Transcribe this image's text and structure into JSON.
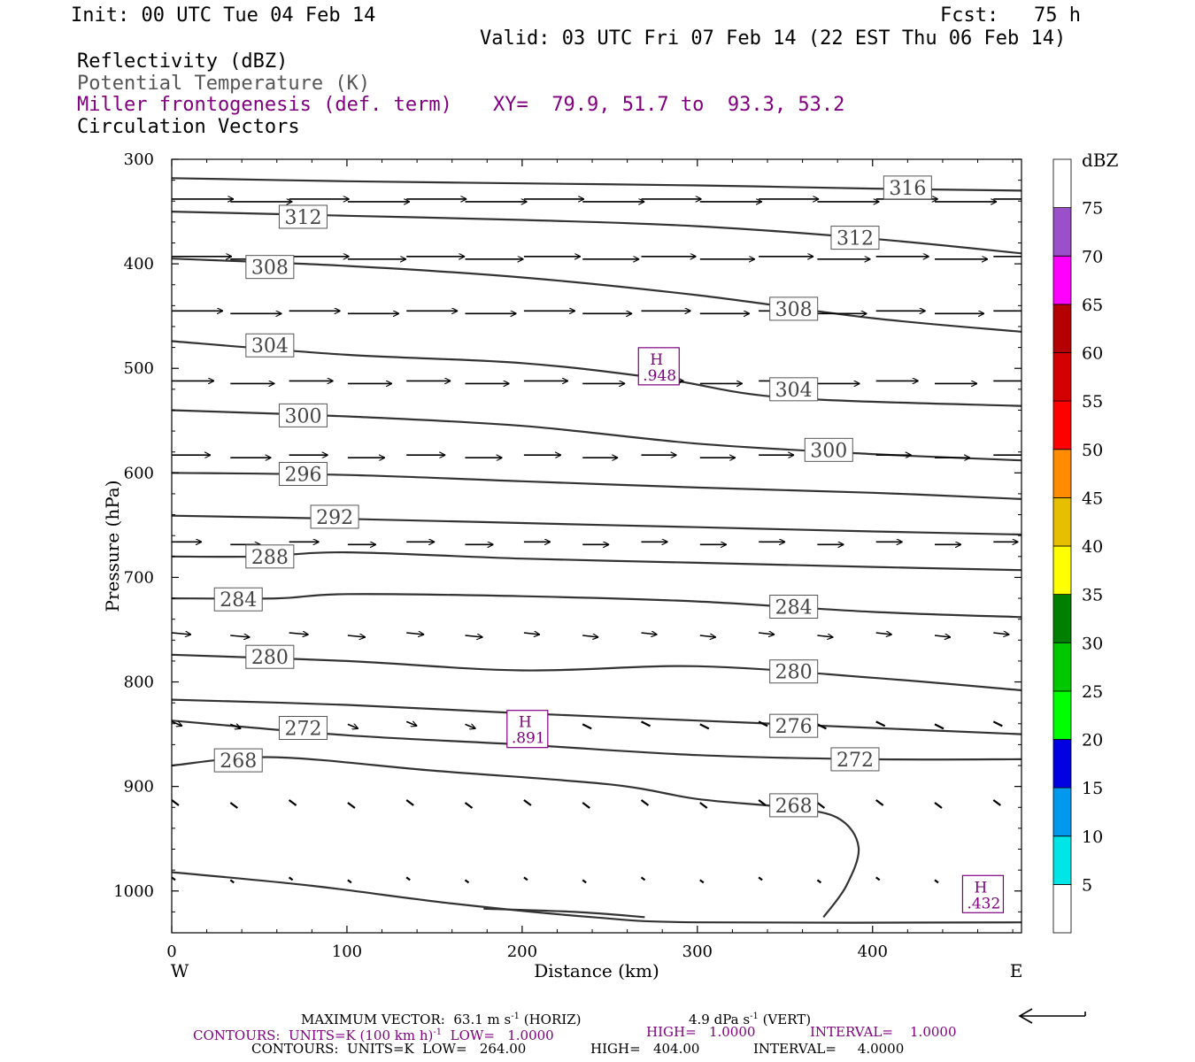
{
  "header": {
    "init": "Init: 00 UTC Tue 04 Feb 14",
    "fcst": "Fcst:   75 h",
    "valid": "Valid: 03 UTC Fri 07 Feb 14 (22 EST Thu 06 Feb 14)",
    "field1": "Reflectivity (dBZ)",
    "field2": "Potential Temperature (K)",
    "field3": "Miller frontogenesis (def. term)",
    "xy": "XY=  79.9, 51.7 to  93.3, 53.2",
    "field4": "Circulation Vectors"
  },
  "footer": {
    "vec_a": "MAXIMUM VECTOR:  63.1 m s",
    "vec_a_sup": "-1",
    "vec_b": " (HORIZ)",
    "vec_c": "4.9 dPa s",
    "vec_c_sup": "-1",
    "vec_d": " (VERT)",
    "c1_a": "CONTOURS:  UNITS=K (100 km h)",
    "c1_sup": "-1",
    "c1_b": "  LOW=   1.0000",
    "c1_c": "HIGH=   1.0000",
    "c1_d": "INTERVAL=    1.0000",
    "c2_a": "CONTOURS:  UNITS=K  LOW=   264.00",
    "c2_b": "HIGH=   404.00",
    "c2_c": "INTERVAL=     4.0000"
  },
  "colors": {
    "contour": "#333333",
    "frontogenesis": "#800080",
    "axis": "#000000"
  },
  "chart_data": {
    "type": "cross-section",
    "xlabel": "Distance (km)",
    "ylabel": "Pressure (hPa)",
    "x_range": [
      0,
      485
    ],
    "y_range": [
      1040,
      300
    ],
    "x_ticks": [
      0,
      100,
      200,
      300,
      400
    ],
    "y_ticks": [
      300,
      400,
      500,
      600,
      700,
      800,
      900,
      1000
    ],
    "west_label": "W",
    "east_label": "E",
    "isentropes": [
      {
        "label": "316",
        "points": [
          [
            0,
            318
          ],
          [
            100,
            321
          ],
          [
            200,
            323
          ],
          [
            300,
            325
          ],
          [
            400,
            328
          ],
          [
            485,
            330
          ]
        ],
        "labels_at": [
          [
            420,
            327
          ]
        ]
      },
      {
        "label": "312",
        "points": [
          [
            0,
            350
          ],
          [
            100,
            354
          ],
          [
            200,
            358
          ],
          [
            300,
            364
          ],
          [
            400,
            376
          ],
          [
            485,
            390
          ]
        ],
        "labels_at": [
          [
            75,
            355
          ],
          [
            390,
            375
          ]
        ]
      },
      {
        "label": "308",
        "points": [
          [
            0,
            395
          ],
          [
            100,
            402
          ],
          [
            200,
            413
          ],
          [
            300,
            430
          ],
          [
            400,
            452
          ],
          [
            485,
            465
          ]
        ],
        "labels_at": [
          [
            56,
            403
          ],
          [
            355,
            443
          ]
        ]
      },
      {
        "label": "304",
        "points": [
          [
            0,
            474
          ],
          [
            100,
            487
          ],
          [
            200,
            495
          ],
          [
            280,
            510
          ],
          [
            350,
            528
          ],
          [
            485,
            536
          ]
        ],
        "labels_at": [
          [
            56,
            478
          ],
          [
            355,
            520
          ]
        ]
      },
      {
        "label": "300",
        "points": [
          [
            0,
            540
          ],
          [
            100,
            546
          ],
          [
            200,
            555
          ],
          [
            300,
            572
          ],
          [
            400,
            582
          ],
          [
            485,
            588
          ]
        ],
        "labels_at": [
          [
            75,
            545
          ],
          [
            375,
            578
          ]
        ]
      },
      {
        "label": "296",
        "points": [
          [
            0,
            600
          ],
          [
            100,
            602
          ],
          [
            200,
            608
          ],
          [
            300,
            614
          ],
          [
            400,
            619
          ],
          [
            485,
            625
          ]
        ],
        "labels_at": [
          [
            75,
            601
          ]
        ]
      },
      {
        "label": "292",
        "points": [
          [
            0,
            641
          ],
          [
            100,
            644
          ],
          [
            200,
            648
          ],
          [
            300,
            652
          ],
          [
            400,
            656
          ],
          [
            485,
            659
          ]
        ],
        "labels_at": [
          [
            93,
            642
          ]
        ]
      },
      {
        "label": "288",
        "points": [
          [
            0,
            680
          ],
          [
            50,
            680
          ],
          [
            100,
            676
          ],
          [
            200,
            682
          ],
          [
            300,
            686
          ],
          [
            400,
            690
          ],
          [
            485,
            693
          ]
        ],
        "labels_at": [
          [
            56,
            680
          ]
        ]
      },
      {
        "label": "284",
        "points": [
          [
            0,
            720
          ],
          [
            60,
            720
          ],
          [
            100,
            716
          ],
          [
            200,
            718
          ],
          [
            300,
            723
          ],
          [
            400,
            733
          ],
          [
            485,
            738
          ]
        ],
        "labels_at": [
          [
            38,
            721
          ],
          [
            355,
            728
          ]
        ]
      },
      {
        "label": "280",
        "points": [
          [
            0,
            774
          ],
          [
            100,
            780
          ],
          [
            200,
            789
          ],
          [
            300,
            785
          ],
          [
            400,
            796
          ],
          [
            485,
            808
          ]
        ],
        "labels_at": [
          [
            56,
            776
          ],
          [
            355,
            790
          ]
        ]
      },
      {
        "label": "276",
        "points": [
          [
            0,
            817
          ],
          [
            100,
            822
          ],
          [
            200,
            830
          ],
          [
            300,
            837
          ],
          [
            400,
            844
          ],
          [
            485,
            850
          ]
        ],
        "labels_at": [
          [
            355,
            842
          ]
        ]
      },
      {
        "label": "272",
        "points": [
          [
            0,
            837
          ],
          [
            100,
            851
          ],
          [
            200,
            860
          ],
          [
            300,
            870
          ],
          [
            400,
            874
          ],
          [
            485,
            874
          ]
        ],
        "labels_at": [
          [
            75,
            844
          ],
          [
            390,
            874
          ]
        ]
      },
      {
        "label": "268",
        "points": [
          [
            0,
            880
          ],
          [
            58,
            872
          ],
          [
            150,
            885
          ],
          [
            250,
            898
          ],
          [
            300,
            912
          ],
          [
            350,
            920
          ],
          [
            380,
            930
          ],
          [
            392,
            958
          ],
          [
            385,
            995
          ],
          [
            372,
            1025
          ]
        ],
        "labels_at": [
          [
            38,
            875
          ],
          [
            355,
            918
          ]
        ]
      }
    ],
    "surface_lines": [
      {
        "points": [
          [
            0,
            982
          ],
          [
            80,
            995
          ],
          [
            160,
            1012
          ],
          [
            240,
            1025
          ],
          [
            300,
            1030
          ],
          [
            485,
            1030
          ]
        ]
      },
      {
        "points": [
          [
            178,
            1017
          ],
          [
            230,
            1020
          ],
          [
            270,
            1025
          ]
        ]
      }
    ],
    "frontogenesis_maxima": [
      {
        "letter": "H",
        "value": ".948",
        "x": 278,
        "p": 498
      },
      {
        "letter": "H",
        "value": ".891",
        "x": 203,
        "p": 845
      },
      {
        "letter": "H",
        "value": ".432",
        "x": 463,
        "p": 1003
      }
    ],
    "vector_rows": [
      {
        "p": 338,
        "lens": [
          70,
          70,
          68,
          70,
          68,
          70,
          68,
          70,
          68,
          70,
          68,
          70,
          70,
          70,
          70
        ],
        "tilt": 0
      },
      {
        "p": 393,
        "lens": [
          68,
          68,
          68,
          66,
          66,
          66,
          64,
          64,
          62,
          62,
          62,
          60,
          60,
          60,
          60
        ],
        "tilt": 0
      },
      {
        "p": 445,
        "lens": [
          58,
          58,
          58,
          58,
          58,
          58,
          58,
          56,
          56,
          56,
          56,
          56,
          56,
          56,
          56
        ],
        "tilt": 0
      },
      {
        "p": 512,
        "lens": [
          48,
          50,
          50,
          50,
          50,
          50,
          50,
          48,
          48,
          48,
          48,
          48,
          48,
          48,
          48
        ],
        "tilt": 0
      },
      {
        "p": 583,
        "lens": [
          44,
          46,
          44,
          42,
          44,
          42,
          42,
          40,
          40,
          40,
          40,
          40,
          40,
          40,
          40
        ],
        "tilt": 0
      },
      {
        "p": 666,
        "lens": [
          34,
          34,
          34,
          32,
          32,
          32,
          30,
          30,
          30,
          30,
          30,
          30,
          30,
          30,
          28
        ],
        "tilt": 0
      },
      {
        "p": 753,
        "lens": [
          22,
          22,
          22,
          20,
          20,
          20,
          18,
          18,
          18,
          18,
          18,
          18,
          18,
          18,
          18
        ],
        "tilt": 2
      },
      {
        "p": 838,
        "lens": [
          12,
          12,
          12,
          12,
          12,
          12,
          10,
          10,
          10,
          10,
          10,
          10,
          10,
          10,
          10
        ],
        "tilt": 5
      },
      {
        "p": 913,
        "lens": [
          8,
          8,
          8,
          8,
          8,
          8,
          8,
          8,
          8,
          8,
          8,
          8,
          8,
          8,
          8
        ],
        "tilt": 6
      },
      {
        "p": 987,
        "lens": [
          4,
          4,
          4,
          4,
          4,
          4,
          4,
          4,
          4,
          4,
          4,
          4,
          4,
          4,
          4
        ],
        "tilt": 3
      }
    ],
    "colorbar": {
      "title": "dBZ",
      "labels": [
        "5",
        "10",
        "15",
        "20",
        "25",
        "30",
        "35",
        "40",
        "45",
        "50",
        "55",
        "60",
        "65",
        "70",
        "75"
      ],
      "colors": [
        "#ffffff",
        "#00e5e5",
        "#0099ee",
        "#0000e0",
        "#00ff00",
        "#00c800",
        "#008000",
        "#ffff00",
        "#e6c000",
        "#ff8c00",
        "#ff0000",
        "#d20000",
        "#b40000",
        "#ff00ff",
        "#9a50c8",
        "#ffffff"
      ]
    }
  }
}
